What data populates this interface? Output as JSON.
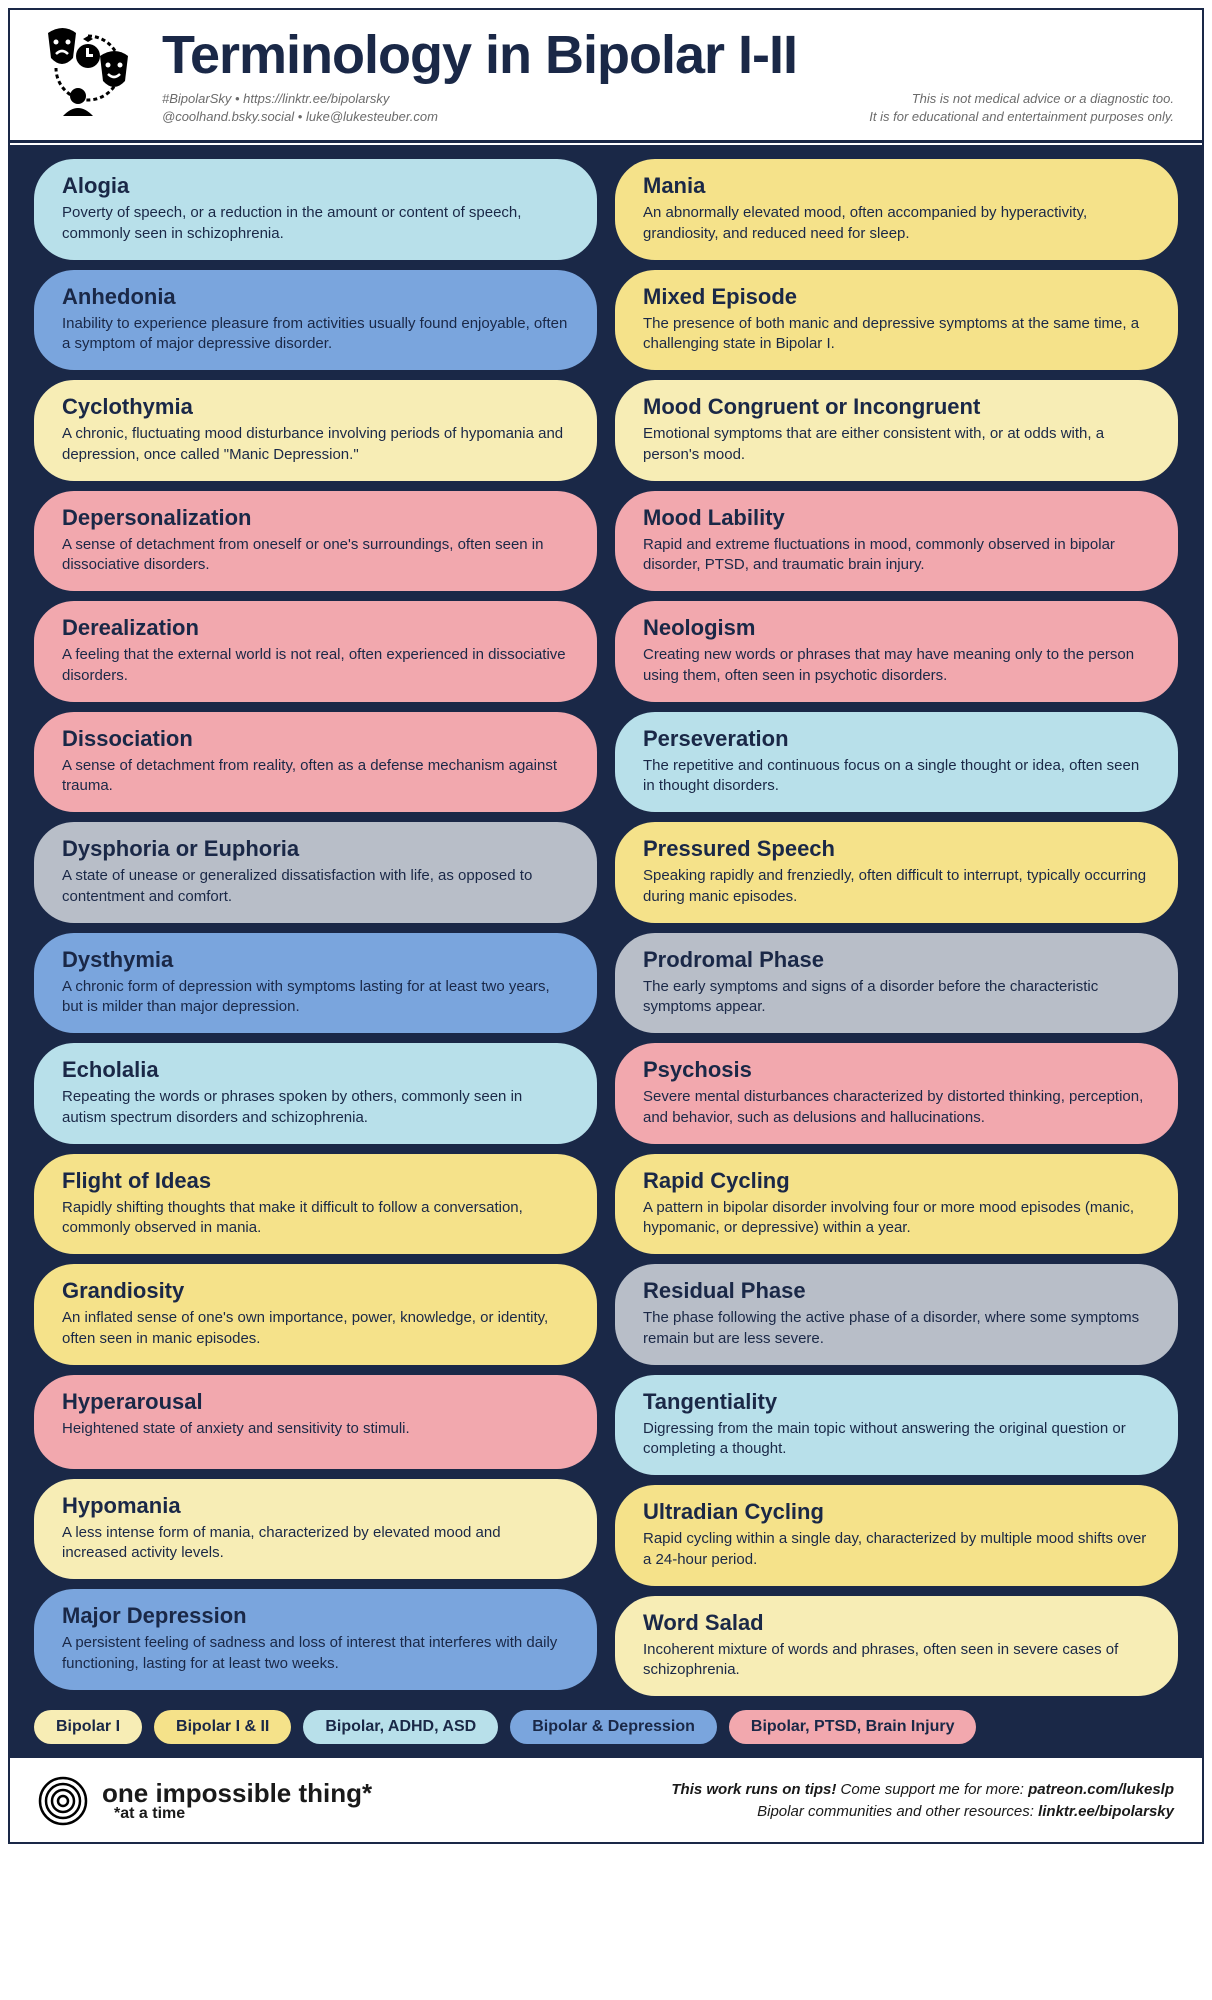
{
  "colors": {
    "lightblue": "#b8e0ea",
    "blue": "#7aa5dd",
    "cream": "#f7edb5",
    "yellow": "#f5e28a",
    "pink": "#f2a8ae",
    "grey": "#b8bec8",
    "dark": "#1a2847",
    "white": "#ffffff"
  },
  "header": {
    "title": "Terminology in Bipolar I-II",
    "hashline1": "#BipolarSky • https://linktr.ee/bipolarsky",
    "hashline2": "@coolhand.bsky.social • luke@lukesteuber.com",
    "disclaimer1": "This is not medical advice or a diagnostic too.",
    "disclaimer2": "It is for educational and entertainment purposes only."
  },
  "legend": [
    {
      "label": "Bipolar I",
      "color": "cream"
    },
    {
      "label": "Bipolar I & II",
      "color": "yellow"
    },
    {
      "label": "Bipolar, ADHD, ASD",
      "color": "lightblue"
    },
    {
      "label": "Bipolar & Depression",
      "color": "blue"
    },
    {
      "label": "Bipolar, PTSD, Brain Injury",
      "color": "pink"
    }
  ],
  "left": [
    {
      "term": "Alogia",
      "def": "Poverty of speech, or a reduction in the amount or content of speech, commonly seen in schizophrenia.",
      "color": "lightblue"
    },
    {
      "term": "Anhedonia",
      "def": "Inability to experience pleasure from activities usually found enjoyable, often a symptom of major depressive disorder.",
      "color": "blue"
    },
    {
      "term": "Cyclothymia",
      "def": "A chronic, fluctuating mood disturbance involving periods of hypomania and depression, once called \"Manic Depression.\"",
      "color": "cream"
    },
    {
      "term": "Depersonalization",
      "def": "A sense of detachment from oneself or one's surroundings, often seen in dissociative disorders.",
      "color": "pink"
    },
    {
      "term": "Derealization",
      "def": "A feeling that the external world is not real, often experienced in dissociative disorders.",
      "color": "pink"
    },
    {
      "term": "Dissociation",
      "def": "A sense of detachment from reality, often as a defense mechanism against trauma.",
      "color": "pink"
    },
    {
      "term": "Dysphoria or Euphoria",
      "def": "A state of unease or generalized dissatisfaction with life, as opposed to contentment and  comfort.",
      "color": "grey"
    },
    {
      "term": "Dysthymia",
      "def": "A chronic form of depression with symptoms lasting for at least two years, but is milder than major depression.",
      "color": "blue"
    },
    {
      "term": "Echolalia",
      "def": "Repeating the words or phrases spoken by others, commonly seen in autism spectrum disorders and schizophrenia.",
      "color": "lightblue"
    },
    {
      "term": "Flight of Ideas",
      "def": "Rapidly shifting thoughts that make it difficult to follow a conversation, commonly observed in mania.",
      "color": "yellow"
    },
    {
      "term": "Grandiosity",
      "def": "An inflated sense of one's own importance, power, knowledge, or identity, often seen in manic episodes.",
      "color": "yellow"
    },
    {
      "term": "Hyperarousal",
      "def": "Heightened state of anxiety and sensitivity to stimuli.",
      "color": "pink"
    },
    {
      "term": "Hypomania",
      "def": "A less intense form of mania, characterized by elevated mood and increased activity levels.",
      "color": "cream"
    },
    {
      "term": "Major Depression",
      "def": "A persistent feeling of sadness and loss of interest that interferes with daily functioning, lasting for at least two weeks.",
      "color": "blue"
    }
  ],
  "right": [
    {
      "term": "Mania",
      "def": "An abnormally elevated mood, often accompanied by hyperactivity, grandiosity, and reduced need for sleep.",
      "color": "yellow"
    },
    {
      "term": "Mixed Episode",
      "def": "The presence of both manic and depressive symptoms at the same time, a challenging state in Bipolar I.",
      "color": "yellow"
    },
    {
      "term": "Mood Congruent or Incongruent",
      "def": "Emotional symptoms that are either consistent with, or at odds with, a person's mood.",
      "color": "cream"
    },
    {
      "term": "Mood Lability",
      "def": "Rapid and extreme fluctuations in mood, commonly observed in bipolar disorder, PTSD, and traumatic brain injury.",
      "color": "pink"
    },
    {
      "term": "Neologism",
      "def": "Creating new words or phrases that may have meaning only to the person using them, often seen in psychotic disorders.",
      "color": "pink"
    },
    {
      "term": "Perseveration",
      "def": "The repetitive and continuous focus on a single thought or idea, often seen in thought disorders.",
      "color": "lightblue"
    },
    {
      "term": "Pressured Speech",
      "def": "Speaking rapidly and frenziedly, often difficult to interrupt, typically occurring during manic episodes.",
      "color": "yellow"
    },
    {
      "term": "Prodromal Phase",
      "def": "The early symptoms and signs of a disorder before the characteristic symptoms appear.",
      "color": "grey"
    },
    {
      "term": "Psychosis",
      "def": "Severe mental disturbances characterized by distorted thinking, perception, and behavior, such as delusions and hallucinations.",
      "color": "pink"
    },
    {
      "term": "Rapid Cycling",
      "def": "A pattern in bipolar disorder involving four or more mood episodes (manic, hypomanic, or depressive) within a year.",
      "color": "yellow"
    },
    {
      "term": "Residual Phase",
      "def": "The phase following the active phase of a disorder, where some symptoms remain but are less severe.",
      "color": "grey"
    },
    {
      "term": "Tangentiality",
      "def": "Digressing from the main topic without answering the original question or completing a thought.",
      "color": "lightblue"
    },
    {
      "term": "Ultradian Cycling",
      "def": "Rapid cycling within a single day, characterized by multiple mood shifts over a 24-hour period.",
      "color": "yellow"
    },
    {
      "term": "Word Salad",
      "def": "Incoherent mixture of words and phrases, often seen in severe cases of schizophrenia.",
      "color": "cream"
    }
  ],
  "footer": {
    "brand": "one impossible thing*",
    "brand_sub": "*at a time",
    "line1a": "This work runs on tips!",
    "line1b": " Come support me for more: ",
    "line1c": "patreon.com/lukeslp",
    "line2a": "Bipolar communities and other resources: ",
    "line2b": "linktr.ee/bipolarsky"
  }
}
